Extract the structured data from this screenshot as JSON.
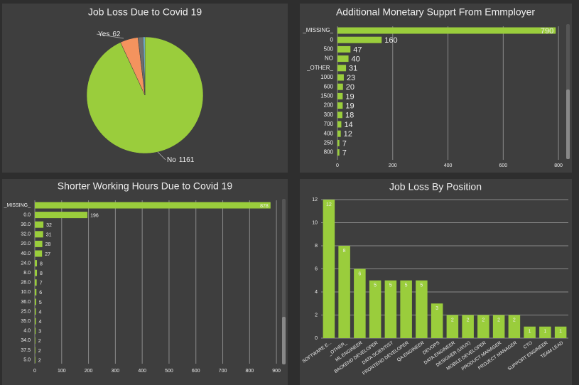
{
  "chart_data": [
    {
      "type": "pie",
      "title": "Job Loss Due to Covid 19",
      "categories": [
        "No",
        "Yes",
        null,
        null
      ],
      "values": [
        1161,
        62,
        18,
        6
      ],
      "colors": [
        "#9acd3c",
        "#f4935e",
        "#6e6e6e",
        "#7ec8e3"
      ]
    },
    {
      "type": "hbar",
      "title": "Additional Monetary Supprt From Emmployer",
      "categories": [
        "_MISSING_",
        "0",
        "500",
        "NO",
        "_OTHER_",
        "1000",
        "600",
        "1500",
        "200",
        "300",
        "700",
        "400",
        "250",
        "800"
      ],
      "values": [
        790,
        160,
        47,
        40,
        31,
        23,
        20,
        19,
        19,
        18,
        14,
        12,
        7,
        7
      ],
      "color": "#9acd3c",
      "xlim": [
        0,
        810
      ],
      "xticks": [
        0,
        200,
        400,
        600,
        800
      ],
      "grid": true
    },
    {
      "type": "hbar",
      "title": "Shorter Working Hours Due  to Covid 19",
      "categories": [
        "_MISSING_",
        "0.0",
        "30.0",
        "32.0",
        "20.0",
        "40.0",
        "24.0",
        "8.0",
        "28.0",
        "10.0",
        "36.0",
        "25.0",
        "35.0",
        "4.0",
        "34.0",
        "37.5",
        "5.0"
      ],
      "values": [
        878,
        196,
        32,
        31,
        28,
        27,
        8,
        8,
        7,
        6,
        5,
        4,
        4,
        3,
        2,
        2,
        2
      ],
      "color": "#9acd3c",
      "xlim": [
        0,
        905
      ],
      "xticks": [
        0,
        100,
        200,
        300,
        400,
        500,
        600,
        700,
        800,
        900
      ],
      "grid": true
    },
    {
      "type": "bar",
      "title": "Job  Loss By Position",
      "categories": [
        "SOFTWARE E...",
        "_OTHER_",
        "ML ENGINEER",
        "BACKEND DEVELOPER",
        "DATA SCIENTIST",
        "FRONTEND DEVELOPER",
        "QA ENGINEER",
        "DEVOPS",
        "DATA ENGINEER",
        "DESIGNER (UI/UX)",
        "MOBILE DEVELOPER",
        "PRODUCT MANAGER",
        "PROJECT MANAGER",
        "CTO",
        "SUPPORT ENGINEER",
        "TEAM LEAD"
      ],
      "values": [
        12,
        8,
        6,
        5,
        5,
        5,
        5,
        3,
        2,
        2,
        2,
        2,
        2,
        1,
        1,
        1
      ],
      "color": "#9acd3c",
      "ylim": [
        0,
        12
      ],
      "yticks": [
        0,
        2,
        4,
        6,
        8,
        10,
        12
      ],
      "grid": true
    }
  ]
}
